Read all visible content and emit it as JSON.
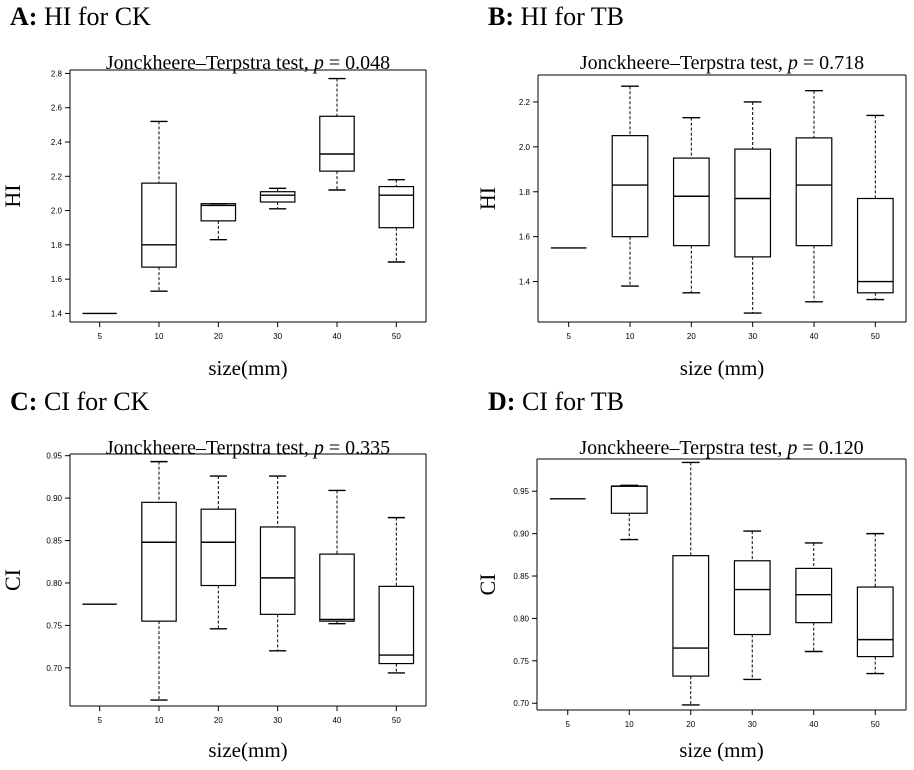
{
  "chart_data": [
    {
      "type": "box",
      "panel_label": "A:",
      "title": "HI for CK",
      "subtitle_prefix": "Jonckheere–Terpstra test, ",
      "p_value": "0.048",
      "xlabel": "size(mm)",
      "ylabel": "HI",
      "ylim": [
        1.35,
        2.82
      ],
      "yticks": [
        "1.4",
        "1.6",
        "1.8",
        "2.0",
        "2.2",
        "2.4",
        "2.6",
        "2.8"
      ],
      "categories": [
        "5",
        "10",
        "20",
        "30",
        "40",
        "50"
      ],
      "boxes": [
        {
          "min": 1.4,
          "q1": 1.4,
          "median": 1.4,
          "q3": 1.4,
          "max": 1.4
        },
        {
          "min": 1.53,
          "q1": 1.67,
          "median": 1.8,
          "q3": 2.16,
          "max": 2.52
        },
        {
          "min": 1.83,
          "q1": 1.94,
          "median": 2.03,
          "q3": 2.04,
          "max": 2.04
        },
        {
          "min": 2.01,
          "q1": 2.05,
          "median": 2.09,
          "q3": 2.11,
          "max": 2.13
        },
        {
          "min": 2.12,
          "q1": 2.23,
          "median": 2.33,
          "q3": 2.55,
          "max": 2.77
        },
        {
          "min": 1.7,
          "q1": 1.9,
          "median": 2.09,
          "q3": 2.14,
          "max": 2.18
        }
      ]
    },
    {
      "type": "box",
      "panel_label": "B:",
      "title": "HI for TB",
      "subtitle_prefix": "Jonckheere–Terpstra test, ",
      "p_value": "0.718",
      "xlabel": "size (mm)",
      "ylabel": "HI",
      "ylim": [
        1.22,
        2.32
      ],
      "yticks": [
        "1.4",
        "1.6",
        "1.8",
        "2.0",
        "2.2"
      ],
      "categories": [
        "5",
        "10",
        "20",
        "30",
        "40",
        "50"
      ],
      "boxes": [
        {
          "min": 1.55,
          "q1": 1.55,
          "median": 1.55,
          "q3": 1.55,
          "max": 1.55
        },
        {
          "min": 1.38,
          "q1": 1.6,
          "median": 1.83,
          "q3": 2.05,
          "max": 2.27
        },
        {
          "min": 1.35,
          "q1": 1.56,
          "median": 1.78,
          "q3": 1.95,
          "max": 2.13
        },
        {
          "min": 1.26,
          "q1": 1.51,
          "median": 1.77,
          "q3": 1.99,
          "max": 2.2
        },
        {
          "min": 1.31,
          "q1": 1.56,
          "median": 1.83,
          "q3": 2.04,
          "max": 2.25
        },
        {
          "min": 1.32,
          "q1": 1.35,
          "median": 1.4,
          "q3": 1.77,
          "max": 2.14
        }
      ]
    },
    {
      "type": "box",
      "panel_label": "C:",
      "title": "CI for CK",
      "subtitle_prefix": "Jonckheere–Terpstra test, ",
      "p_value": "0.335",
      "xlabel": "size(mm)",
      "ylabel": "CI",
      "ylim": [
        0.655,
        0.952
      ],
      "yticks": [
        "0.70",
        "0.75",
        "0.80",
        "0.85",
        "0.90",
        "0.95"
      ],
      "categories": [
        "5",
        "10",
        "20",
        "30",
        "40",
        "50"
      ],
      "boxes": [
        {
          "min": 0.775,
          "q1": 0.775,
          "median": 0.775,
          "q3": 0.775,
          "max": 0.775
        },
        {
          "min": 0.662,
          "q1": 0.755,
          "median": 0.848,
          "q3": 0.895,
          "max": 0.943
        },
        {
          "min": 0.746,
          "q1": 0.797,
          "median": 0.848,
          "q3": 0.887,
          "max": 0.926
        },
        {
          "min": 0.72,
          "q1": 0.763,
          "median": 0.806,
          "q3": 0.866,
          "max": 0.926
        },
        {
          "min": 0.752,
          "q1": 0.755,
          "median": 0.757,
          "q3": 0.834,
          "max": 0.909
        },
        {
          "min": 0.694,
          "q1": 0.705,
          "median": 0.715,
          "q3": 0.796,
          "max": 0.877
        }
      ]
    },
    {
      "type": "box",
      "panel_label": "D:",
      "title": "CI for TB",
      "subtitle_prefix": "Jonckheere–Terpstra test, ",
      "p_value": "0.120",
      "xlabel": "size (mm)",
      "ylabel": "CI",
      "ylim": [
        0.692,
        0.988
      ],
      "yticks": [
        "0.70",
        "0.75",
        "0.80",
        "0.85",
        "0.90",
        "0.95"
      ],
      "categories": [
        "5",
        "10",
        "20",
        "30",
        "40",
        "50"
      ],
      "boxes": [
        {
          "min": 0.941,
          "q1": 0.941,
          "median": 0.941,
          "q3": 0.941,
          "max": 0.941
        },
        {
          "min": 0.893,
          "q1": 0.924,
          "median": 0.956,
          "q3": 0.956,
          "max": 0.957
        },
        {
          "min": 0.698,
          "q1": 0.732,
          "median": 0.765,
          "q3": 0.874,
          "max": 0.984
        },
        {
          "min": 0.728,
          "q1": 0.781,
          "median": 0.834,
          "q3": 0.868,
          "max": 0.903
        },
        {
          "min": 0.761,
          "q1": 0.795,
          "median": 0.828,
          "q3": 0.859,
          "max": 0.889
        },
        {
          "min": 0.735,
          "q1": 0.755,
          "median": 0.775,
          "q3": 0.837,
          "max": 0.9
        }
      ]
    }
  ]
}
